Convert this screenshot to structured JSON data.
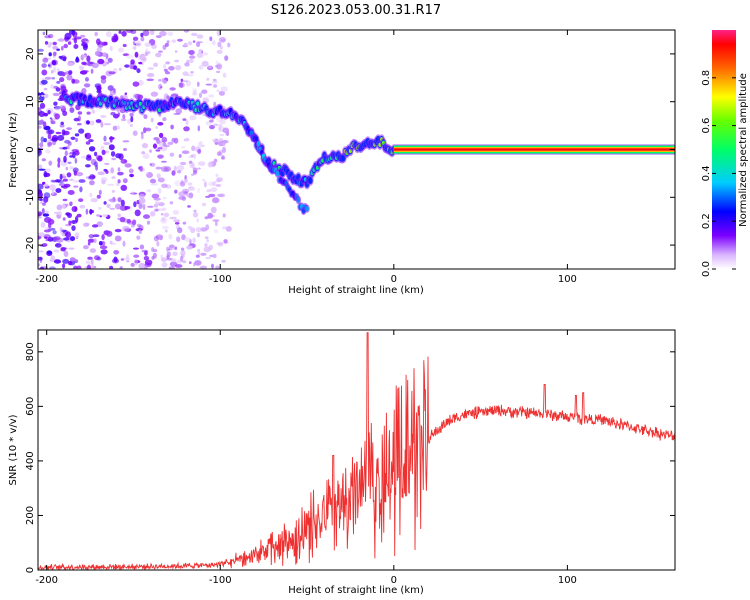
{
  "figure": {
    "title": "S126.2023.053.00.31.R17"
  },
  "chart_data": [
    {
      "type": "heatmap",
      "xlabel": "Height of straight line (km)",
      "ylabel": "Frequency (Hz)",
      "xlim": [
        -205,
        162
      ],
      "ylim": [
        -25,
        25
      ],
      "xticks": [
        -200,
        -100,
        0,
        100
      ],
      "yticks": [
        -20,
        -10,
        0,
        10,
        20
      ],
      "colorbar": {
        "label": "Normalized spectral amplitude",
        "range": [
          0,
          1
        ],
        "ticks": [
          0.0,
          0.2,
          0.4,
          0.6,
          0.8
        ]
      },
      "ridge": {
        "x": [
          -190,
          -175,
          -165,
          -155,
          -145,
          -135,
          -125,
          -115,
          -105,
          -95,
          -88,
          -80,
          -72,
          -65,
          -58,
          -50,
          -45,
          -40,
          -35,
          -30,
          -25,
          -20,
          -15,
          -10,
          -5,
          0,
          20,
          40,
          60,
          80,
          100,
          120,
          140,
          162
        ],
        "y": [
          11,
          10,
          10,
          9,
          9,
          9,
          10,
          9,
          8,
          8,
          6,
          2,
          -3,
          -4,
          -6,
          -7,
          -4,
          -2,
          -1,
          -2,
          0,
          1,
          1,
          2,
          1,
          0,
          0,
          0,
          0,
          0,
          0,
          0,
          0,
          0
        ]
      },
      "secondary_ridge": {
        "x": [
          -85,
          -78,
          -72,
          -66,
          -60,
          -55,
          -50
        ],
        "y": [
          5,
          1,
          -3,
          -6,
          -8,
          -11,
          -13
        ]
      },
      "scatter_extent_x": [
        -205,
        -95
      ]
    },
    {
      "type": "line",
      "xlabel": "Height of straight line (km)",
      "ylabel": "SNR (10 * v/v)",
      "xlim": [
        -205,
        162
      ],
      "ylim": [
        0,
        880
      ],
      "xticks": [
        -200,
        -100,
        0,
        100
      ],
      "yticks": [
        0,
        200,
        400,
        600,
        800
      ],
      "color": "#ee3030",
      "envelope": {
        "x": [
          -205,
          -150,
          -120,
          -100,
          -90,
          -80,
          -70,
          -60,
          -50,
          -40,
          -30,
          -20,
          -10,
          0,
          10,
          20,
          30,
          40,
          60,
          80,
          90,
          100,
          120,
          140,
          160
        ],
        "y": [
          10,
          12,
          15,
          20,
          35,
          50,
          80,
          100,
          140,
          190,
          240,
          280,
          320,
          360,
          420,
          480,
          540,
          570,
          585,
          575,
          570,
          560,
          550,
          520,
          490
        ]
      },
      "spikes": [
        {
          "x": -15,
          "y": 870
        },
        {
          "x": -35,
          "y": 420
        },
        {
          "x": 87,
          "y": 680
        },
        {
          "x": 105,
          "y": 640
        },
        {
          "x": 109,
          "y": 650
        }
      ]
    }
  ]
}
